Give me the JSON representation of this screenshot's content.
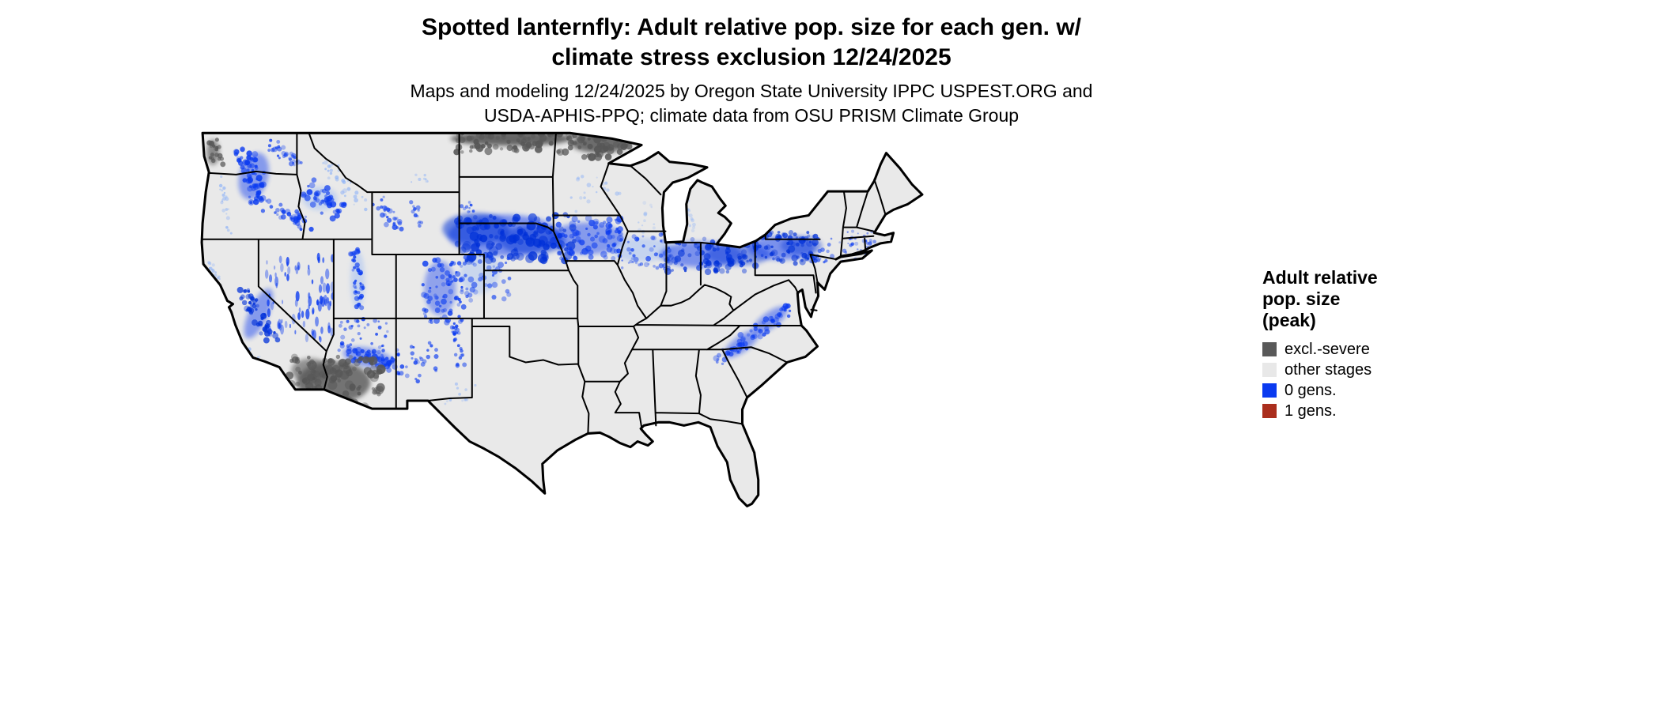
{
  "title": {
    "line1": "Spotted lanternfly: Adult relative pop. size for each gen. w/",
    "line2": "climate stress exclusion 12/24/2025"
  },
  "subtitle": {
    "line1": "Maps and modeling 12/24/2025 by Oregon State University IPPC USPEST.ORG and",
    "line2": "USDA-APHIS-PPQ; climate data from OSU PRISM Climate Group"
  },
  "legend": {
    "title_lines": [
      "Adult relative",
      "pop. size",
      "(peak)"
    ],
    "items": [
      {
        "label": "excl.-severe",
        "color": "#595959"
      },
      {
        "label": "other stages",
        "color": "#e8e8e8"
      },
      {
        "label": "0 gens.",
        "color": "#0a3af0"
      },
      {
        "label": "1 gens.",
        "color": "#aa2e1d"
      }
    ]
  },
  "map": {
    "colors": {
      "background": "#ffffff",
      "state_fill": "#e9e9e9",
      "state_border": "#000000",
      "gens_0_blue": "#0a3af0",
      "gens_0_blue_dark": "#0030d8",
      "gens_0_blue_light": "#8fb3f7",
      "excl_severe_gray": "#575757",
      "gens_1_red": "#aa2e1d"
    }
  }
}
